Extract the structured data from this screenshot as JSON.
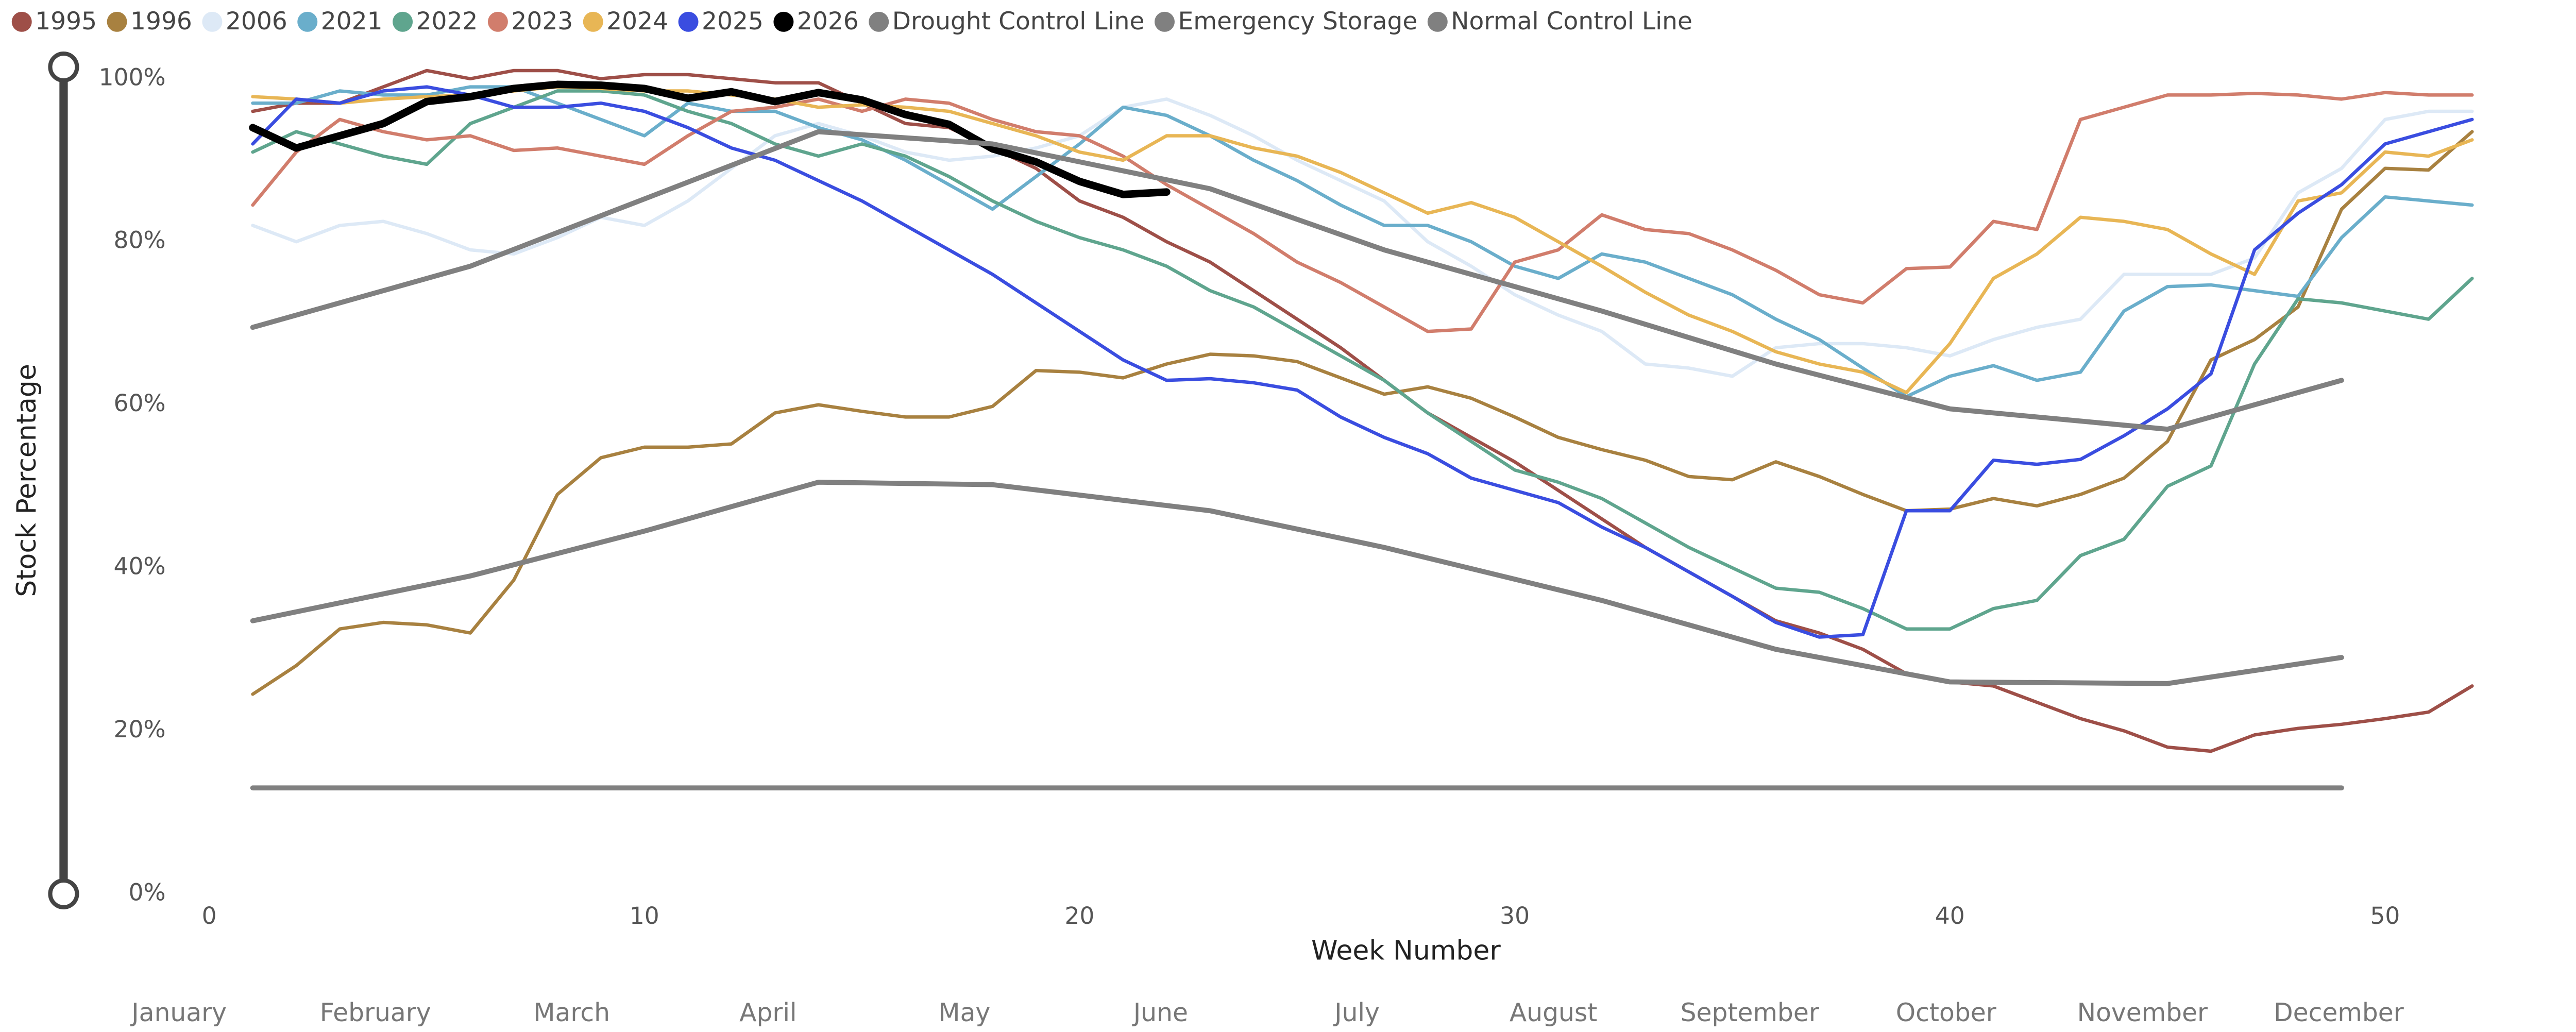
{
  "chart_data": {
    "type": "line",
    "x_label": "Week Number",
    "y_label": "Stock Percentage",
    "xlim": [
      0,
      52
    ],
    "xticks": [
      0,
      10,
      20,
      30,
      40,
      50
    ],
    "ylim": [
      0,
      100
    ],
    "yticks": [
      {
        "value": 0,
        "label": "0%"
      },
      {
        "value": 20,
        "label": "20%"
      },
      {
        "value": 40,
        "label": "40%"
      },
      {
        "value": 60,
        "label": "60%"
      },
      {
        "value": 80,
        "label": "80%"
      },
      {
        "value": 100,
        "label": "100%"
      }
    ],
    "month_labels": [
      "January",
      "February",
      "March",
      "April",
      "May",
      "June",
      "July",
      "August",
      "September",
      "October",
      "November",
      "December"
    ],
    "x": [
      1,
      2,
      3,
      4,
      5,
      6,
      7,
      8,
      9,
      10,
      11,
      12,
      13,
      14,
      15,
      16,
      17,
      18,
      19,
      20,
      21,
      22,
      23,
      24,
      25,
      26,
      27,
      28,
      29,
      30,
      31,
      32,
      33,
      34,
      35,
      36,
      37,
      38,
      39,
      40,
      41,
      42,
      43,
      44,
      45,
      46,
      47,
      48,
      49,
      50,
      51,
      52
    ],
    "series": [
      {
        "name": "1995",
        "color": "#9e4f48",
        "values": [
          96,
          97,
          97,
          99,
          101,
          100,
          101,
          101,
          100,
          100.5,
          100.5,
          100,
          99.5,
          99.5,
          97,
          94.5,
          94,
          91.5,
          89,
          85,
          83,
          80,
          77.5,
          74,
          70.5,
          67,
          63,
          59,
          56,
          53,
          49.5,
          46,
          42.5,
          39.5,
          36.5,
          33.5,
          32,
          30,
          27,
          26,
          25.5,
          23.5,
          21.5,
          20,
          18,
          17.5,
          19.5,
          20.3,
          20.8,
          21.5,
          22.3,
          25.5
        ]
      },
      {
        "name": "1996",
        "color": "#a88140",
        "values": [
          24.5,
          28,
          32.5,
          33.3,
          33,
          32,
          38.5,
          49,
          53.5,
          54.8,
          54.8,
          55.2,
          59,
          60,
          59.2,
          58.5,
          58.5,
          59.8,
          64.2,
          64,
          63.3,
          65,
          66.2,
          66,
          65.3,
          63.3,
          61.3,
          62.2,
          60.8,
          58.5,
          56,
          54.5,
          53.2,
          51.2,
          50.8,
          53,
          51.2,
          49,
          47,
          47.2,
          48.5,
          47.6,
          49,
          51,
          55.5,
          65.5,
          68,
          72,
          84,
          89,
          88.8,
          93.5
        ]
      },
      {
        "name": "2006",
        "color": "#dde9f6",
        "values": [
          82,
          80,
          82,
          82.5,
          81,
          79,
          78.5,
          80.5,
          83,
          82,
          85,
          89,
          93,
          94.5,
          93,
          91,
          90,
          90.5,
          91.5,
          93,
          96.5,
          97.5,
          95.5,
          93,
          90,
          87.5,
          85,
          80,
          77,
          73.5,
          71,
          69,
          65,
          64.5,
          63.5,
          67,
          67.5,
          67.5,
          67,
          66,
          68,
          69.5,
          70.5,
          76,
          76,
          76,
          78,
          86,
          89,
          95,
          96,
          96
        ]
      },
      {
        "name": "2021",
        "color": "#6aaecb",
        "values": [
          97,
          97,
          98.5,
          98,
          98,
          99,
          99,
          97,
          95,
          93,
          97,
          96,
          96,
          94,
          92.5,
          90,
          87,
          84,
          88,
          92,
          96.5,
          95.5,
          93,
          90,
          87.5,
          84.5,
          82,
          82,
          80,
          77,
          75.5,
          78.5,
          77.5,
          75.5,
          73.5,
          70.5,
          68,
          64.5,
          61,
          63.5,
          64.8,
          63,
          64,
          71.5,
          74.5,
          74.7,
          74,
          73.3,
          80.5,
          85.5,
          85,
          84.5
        ]
      },
      {
        "name": "2022",
        "color": "#5fa58e",
        "values": [
          91,
          93.5,
          92,
          90.5,
          89.5,
          94.5,
          96.5,
          98.5,
          98.5,
          98,
          96,
          94.5,
          92,
          90.5,
          92,
          90.5,
          88,
          85,
          82.5,
          80.5,
          79,
          77,
          74,
          72,
          69,
          66,
          63,
          59,
          55.5,
          52,
          50.5,
          48.5,
          45.5,
          42.5,
          40,
          37.5,
          37,
          35,
          32.5,
          32.5,
          35,
          36,
          41.5,
          43.5,
          50,
          52.5,
          65,
          73,
          72.5,
          71.5,
          70.5,
          75.5
        ]
      },
      {
        "name": "2023",
        "color": "#d17d6c",
        "values": [
          84.5,
          91,
          95,
          93.5,
          92.5,
          93,
          91.2,
          91.5,
          90.5,
          89.5,
          93,
          96,
          96.5,
          97.5,
          96,
          97.5,
          97,
          95,
          93.5,
          93,
          90.5,
          87,
          84,
          81,
          77.5,
          75,
          72,
          69,
          69.3,
          77.5,
          79,
          83.3,
          81.5,
          81,
          79,
          76.5,
          73.5,
          72.5,
          76.7,
          76.9,
          82.5,
          81.5,
          95,
          96.5,
          98,
          98,
          98.2,
          98,
          97.5,
          98.3,
          98,
          98
        ]
      },
      {
        "name": "2024",
        "color": "#e8b655",
        "values": [
          97.8,
          97.5,
          97,
          97.5,
          97.8,
          98,
          98.5,
          99,
          98.8,
          98.5,
          98.5,
          98,
          97.5,
          96.5,
          96.8,
          96.5,
          96,
          94.5,
          93,
          91,
          90,
          93,
          93,
          91.5,
          90.5,
          88.5,
          86,
          83.5,
          84.8,
          83,
          80,
          77,
          73.8,
          71,
          69,
          66.5,
          65,
          64,
          61.5,
          67.5,
          75.5,
          78.5,
          83,
          82.5,
          81.5,
          78.5,
          76,
          85,
          86,
          91,
          90.5,
          92.5
        ]
      },
      {
        "name": "2025",
        "color": "#3a4de0",
        "values": [
          92,
          97.5,
          97,
          98.5,
          99,
          98,
          96.5,
          96.5,
          97,
          96,
          94,
          91.5,
          90,
          87.5,
          85,
          82,
          79,
          76,
          72.5,
          69,
          65.5,
          63,
          63.2,
          62.7,
          61.8,
          58.5,
          56,
          54,
          51,
          49.5,
          48,
          45,
          42.5,
          39.5,
          36.5,
          33.3,
          31.5,
          31.8,
          47,
          47,
          53.2,
          52.7,
          53.3,
          56.2,
          59.5,
          63.8,
          79,
          83.5,
          87,
          92,
          93.5,
          95
        ]
      },
      {
        "name": "2026",
        "color": "#000000",
        "width": 4.5,
        "values": [
          94,
          91.5,
          93,
          94.5,
          97.2,
          97.8,
          98.8,
          99.3,
          99.2,
          98.8,
          97.6,
          98.4,
          97.2,
          98.3,
          97.4,
          95.6,
          94.4,
          91.4,
          89.8,
          87.4,
          85.8,
          86.1,
          null,
          null,
          null,
          null,
          null,
          null,
          null,
          null,
          null,
          null,
          null,
          null,
          null,
          null,
          null,
          null,
          null,
          null,
          null,
          null,
          null,
          null,
          null,
          null,
          null,
          null,
          null,
          null,
          null,
          null
        ]
      },
      {
        "name": "Drought Control Line",
        "color": "#808080",
        "width": 3,
        "x": [
          1,
          6,
          14,
          18,
          23,
          27,
          32,
          36,
          40,
          45,
          49
        ],
        "values": [
          69.5,
          77,
          93.5,
          92,
          86.5,
          79,
          71.5,
          65,
          59.5,
          57,
          63
        ]
      },
      {
        "name": "Emergency Storage",
        "color": "#808080",
        "width": 3,
        "x": [
          1,
          49
        ],
        "values": [
          13,
          13
        ]
      },
      {
        "name": "Normal Control Line",
        "color": "#808080",
        "width": 3,
        "x": [
          1,
          6,
          10,
          14,
          18,
          23,
          27,
          32,
          36,
          40,
          45,
          49
        ],
        "values": [
          33.5,
          39,
          44.5,
          50.5,
          50.2,
          47,
          42.5,
          36,
          30,
          26,
          25.8,
          29
        ]
      }
    ]
  }
}
